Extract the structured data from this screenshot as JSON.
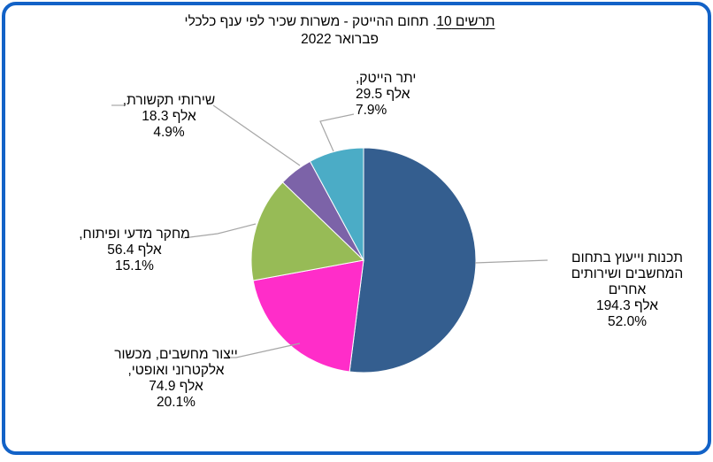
{
  "frame": {
    "border_color": "#1262C7"
  },
  "title": {
    "prefix_underlined": "תרשים 10",
    "rest": ". תחום ההייטק - משרות שכיר לפי ענף כלכלי",
    "line2": "פברואר 2022"
  },
  "chart_data": {
    "type": "pie",
    "title": "תרשים 10. תחום ההייטק - משרות שכיר לפי ענף כלכלי פברואר 2022",
    "unit": "אלף (thousands of employee jobs)",
    "start_angle_deg": 0,
    "direction": "clockwise",
    "legend_position": "none (callout data labels with leader lines)",
    "slices": [
      {
        "label": "תכנות וייעוץ בתחום המחשבים ושירותים אחרים",
        "value_thousands": 194.3,
        "percent": 52.0,
        "color": "#345E8F"
      },
      {
        "label": "ייצור מחשבים, מכשור אלקטרוני ואופטי",
        "value_thousands": 74.9,
        "percent": 20.1,
        "color": "#FF2DC9"
      },
      {
        "label": "מחקר מדעי ופיתוח",
        "value_thousands": 56.4,
        "percent": 15.1,
        "color": "#97BB56"
      },
      {
        "label": "שירותי תקשורת",
        "value_thousands": 18.3,
        "percent": 4.9,
        "color": "#7C63A8"
      },
      {
        "label": "יתר הייטק",
        "value_thousands": 29.5,
        "percent": 7.9,
        "color": "#4BACC6"
      }
    ],
    "data_labels": [
      {
        "lines": [
          "תכנות וייעוץ  בתחום",
          "המחשבים ושירותים",
          "אחרים",
          "194.3 אלף",
          "52.0%"
        ]
      },
      {
        "lines": [
          "ייצור מחשבים, מכשור",
          "אלקטרוני ואופטי,",
          "74.9 אלף",
          "20.1%"
        ]
      },
      {
        "lines": [
          "מחקר מדעי ופיתוח,",
          "56.4 אלף",
          "15.1%"
        ]
      },
      {
        "lines": [
          "שירותי תקשורת,",
          "18.3 אלף",
          "4.9%"
        ]
      },
      {
        "lines": [
          "יתר הייטק,",
          "29.5 אלף",
          "7.9%"
        ]
      }
    ],
    "leader_line_color": "#A6A6A6"
  }
}
